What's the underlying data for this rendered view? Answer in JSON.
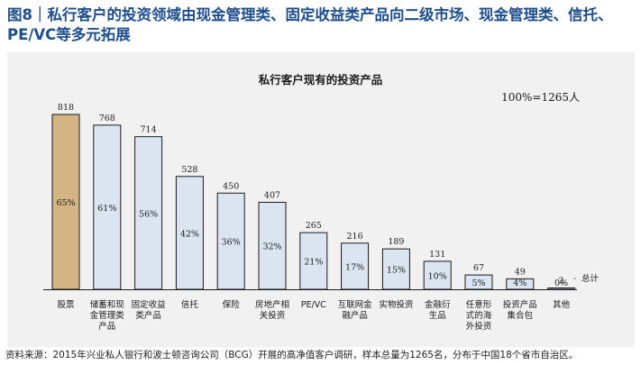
{
  "figure": {
    "title": "图8｜私行客户的投资领域由现金管理类、固定收益类产品向二级市场、现金管理类、信托、PE/VC等多元拓展",
    "source": "资料来源：2015年兴业私人银行和波士顿咨询公司（BCG）开展的高净值客户调研，样本总量为1265名，分布于中国18个省市自治区。"
  },
  "chart_data": {
    "type": "bar",
    "title": "私行客户现有的投资产品",
    "unit_note": "100%=1265人",
    "total_label": "总计",
    "categories": [
      "股票",
      "储蓄和现金管理类产品",
      "固定收益类产品",
      "信托",
      "保险",
      "房地产相关投资",
      "PE/VC",
      "互联网金融产品",
      "实物投资",
      "金融衍生品",
      "任意形式的海外投资",
      "投资产品集合包",
      "其他"
    ],
    "category_lines": [
      [
        "股票"
      ],
      [
        "储蓄和现",
        "金管理类",
        "产品"
      ],
      [
        "固定收益",
        "类产品"
      ],
      [
        "信托"
      ],
      [
        "保险"
      ],
      [
        "房地产相",
        "关投资"
      ],
      [
        "PE/VC"
      ],
      [
        "互联网金",
        "融产品"
      ],
      [
        "实物投资"
      ],
      [
        "金融衍",
        "生品"
      ],
      [
        "任意形",
        "式的海",
        "外投资"
      ],
      [
        "投资产品",
        "集合包"
      ],
      [
        "其他"
      ]
    ],
    "values": [
      818,
      768,
      714,
      528,
      450,
      407,
      265,
      216,
      189,
      131,
      67,
      49,
      2
    ],
    "percent_labels": [
      "65%",
      "61%",
      "56%",
      "42%",
      "36%",
      "32%",
      "21%",
      "17%",
      "15%",
      "10%",
      "5%",
      "4%",
      "0%"
    ],
    "ylim": [
      0,
      818
    ],
    "highlight_index": 0,
    "colors": {
      "highlight": "#d3b483",
      "bar": "#dbe5f1",
      "edge": "#1a1a1a"
    }
  }
}
